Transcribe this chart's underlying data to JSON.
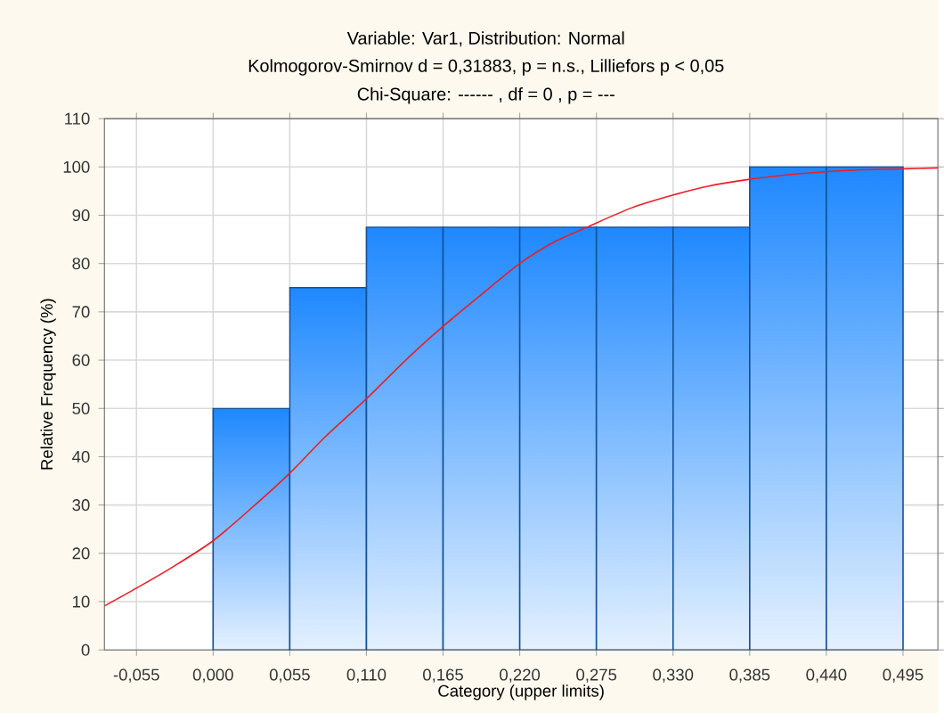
{
  "chart_data": {
    "type": "histogram",
    "title": "Variable: Var1, Distribution: Normal",
    "subtitle": "Kolmogorov-Smirnov d = 0,31883, p = n.s., Lilliefors p < 0,05",
    "annotations": [
      "Chi-Square:  ------ , df =  0 , p = ---"
    ],
    "xlabel": "Category (upper limits)",
    "ylabel": "Relative Frequency (%)",
    "bins": [
      0,
      0.055,
      0.11,
      0.165,
      0.22,
      0.275,
      0.33,
      0.385,
      0.44,
      0.495
    ],
    "values": [
      50,
      75,
      87.5,
      87.5,
      87.5,
      87.5,
      87.5,
      100,
      100
    ],
    "color": "#1e88ff",
    "series": [
      {
        "type": "line",
        "color": "#ee1c25",
        "x": [
          -0.078,
          -0.055,
          -0.03,
          0,
          0.03,
          0.055,
          0.08,
          0.11,
          0.14,
          0.165,
          0.19,
          0.22,
          0.245,
          0.268,
          0.3,
          0.329,
          0.355,
          0.384,
          0.41,
          0.439,
          0.465,
          0.494,
          0.52
        ],
        "values": [
          9.1,
          12.8,
          17,
          22.6,
          30,
          36.6,
          44,
          52,
          60.5,
          67,
          73,
          80,
          84.5,
          87.5,
          91.5,
          94.1,
          96,
          97.4,
          98.3,
          99,
          99.4,
          99.6,
          99.8
        ]
      }
    ],
    "xlim": [
      -0.078,
      0.52
    ],
    "ylim": [
      0,
      110
    ],
    "xticks": [
      {
        "value": -0.055,
        "label": "-0,055"
      },
      {
        "value": 0,
        "label": "0,000"
      },
      {
        "value": 0.055,
        "label": "0,055"
      },
      {
        "value": 0.11,
        "label": "0,110"
      },
      {
        "value": 0.165,
        "label": "0,165"
      },
      {
        "value": 0.22,
        "label": "0,220"
      },
      {
        "value": 0.275,
        "label": "0,275"
      },
      {
        "value": 0.33,
        "label": "0,330"
      },
      {
        "value": 0.385,
        "label": "0,385"
      },
      {
        "value": 0.44,
        "label": "0,440"
      },
      {
        "value": 0.495,
        "label": "0,495"
      }
    ],
    "yticks": [
      0,
      10,
      20,
      30,
      40,
      50,
      60,
      70,
      80,
      90,
      100,
      110
    ],
    "grid": true
  }
}
